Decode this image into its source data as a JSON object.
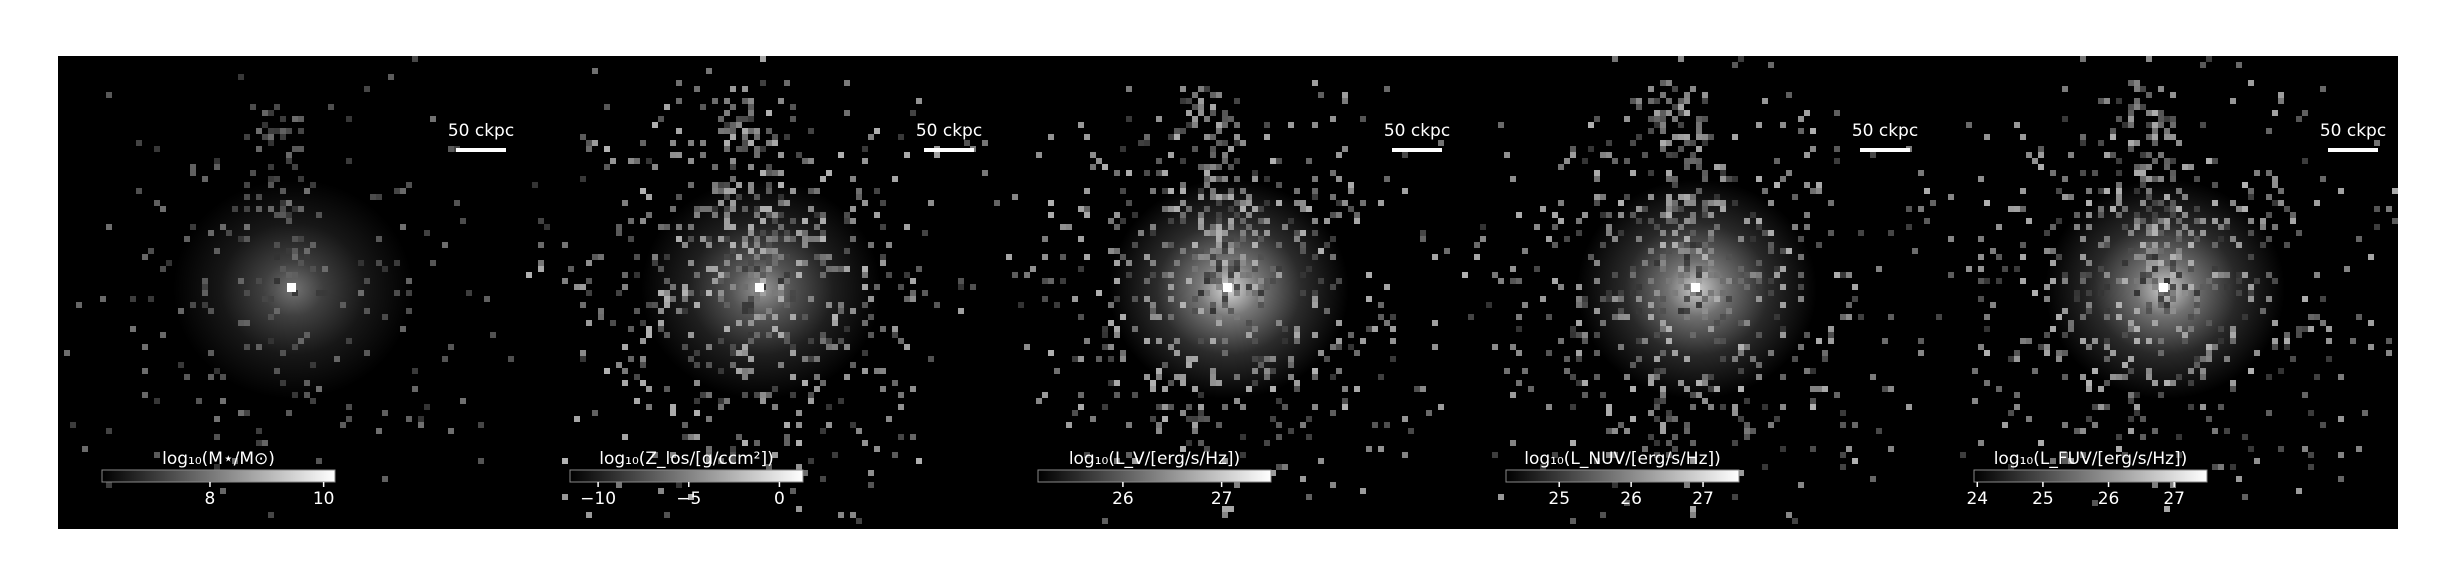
{
  "panels": [
    {
      "scalebar": "50 ckpc",
      "colorbar": {
        "label": "log₁₀(M⋆/M⊙)",
        "lim": [
          6.1,
          10.2
        ],
        "ticks": [
          8,
          10
        ]
      }
    },
    {
      "scalebar": "50 ckpc",
      "colorbar": {
        "label": "log₁₀(Z_los/[g/ccm²])",
        "lim": [
          -11.55,
          1.3
        ],
        "ticks": [
          {
            "value": -10,
            "label": "−10"
          },
          {
            "value": -5,
            "label": "−5"
          },
          0
        ]
      }
    },
    {
      "scalebar": "50 ckpc",
      "colorbar": {
        "label": "log₁₀(L_V/[erg/s/Hz])",
        "lim": [
          25.14,
          27.5
        ],
        "ticks": [
          26,
          27
        ]
      }
    },
    {
      "scalebar": "50 ckpc",
      "colorbar": {
        "label": "log₁₀(L_NUV/[erg/s/Hz])",
        "lim": [
          24.26,
          27.5
        ],
        "ticks": [
          25,
          26,
          27
        ]
      }
    },
    {
      "scalebar": "50 ckpc",
      "colorbar": {
        "label": "log₁₀(L_FUV/[erg/s/Hz])",
        "lim": [
          23.95,
          27.5
        ],
        "ticks": [
          24,
          25,
          26,
          27
        ]
      }
    }
  ]
}
